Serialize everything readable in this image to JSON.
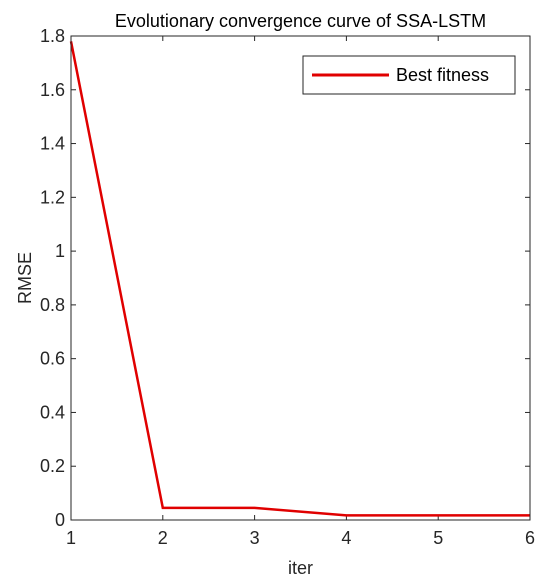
{
  "chart_data": {
    "type": "line",
    "title": "Evolutionary convergence curve of SSA-LSTM",
    "xlabel": "iter",
    "ylabel": "RMSE",
    "xlim": [
      1,
      6
    ],
    "ylim": [
      0,
      1.8
    ],
    "xticks": [
      1,
      2,
      3,
      4,
      5,
      6
    ],
    "yticks": [
      0,
      0.2,
      0.4,
      0.6,
      0.8,
      1,
      1.2,
      1.4,
      1.6,
      1.8
    ],
    "ytick_labels": [
      "0",
      "0.2",
      "0.4",
      "0.6",
      "0.8",
      "1",
      "1.2",
      "1.4",
      "1.6",
      "1.8"
    ],
    "grid": false,
    "legend_position": "top-right",
    "series": [
      {
        "name": "Best fitness",
        "color": "#e00000",
        "x": [
          1,
          2,
          3,
          4,
          5,
          6
        ],
        "y": [
          1.78,
          0.045,
          0.045,
          0.017,
          0.017,
          0.017
        ]
      }
    ]
  }
}
